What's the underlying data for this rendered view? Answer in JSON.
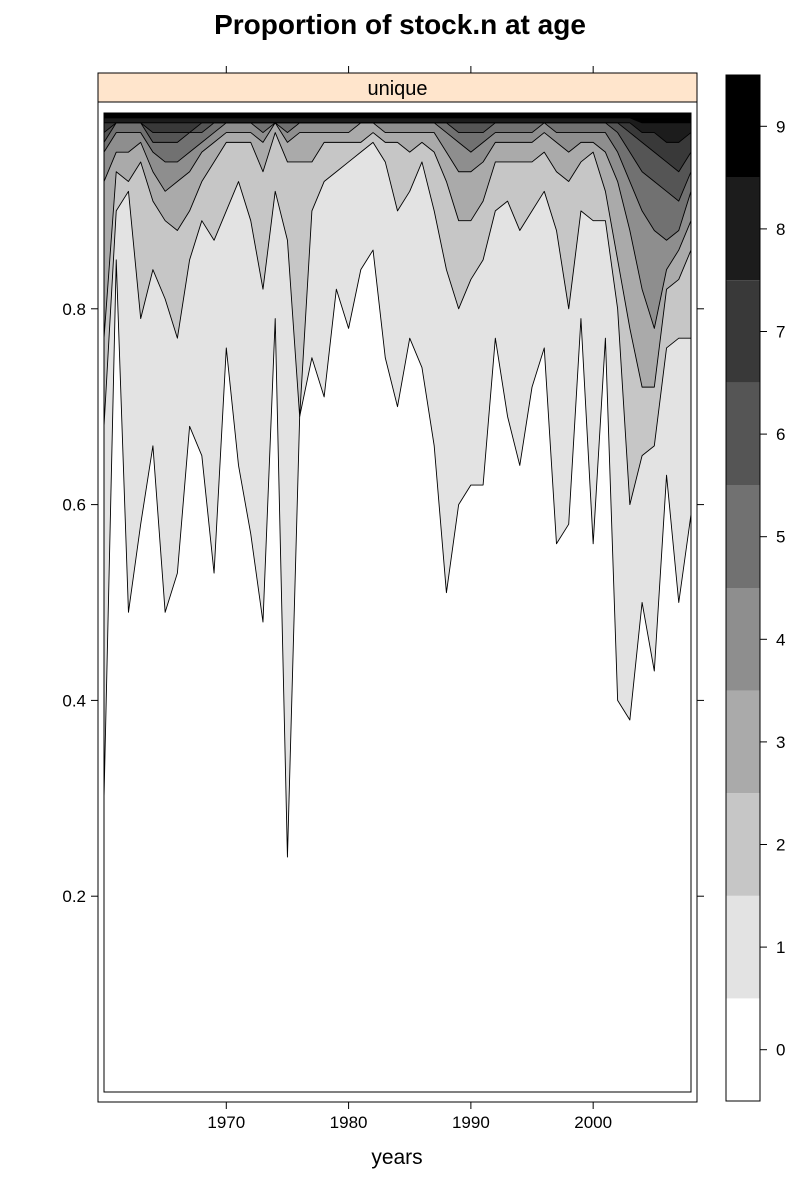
{
  "chart_data": {
    "type": "area",
    "title": "Proportion of stock.n at age",
    "xlabel": "years",
    "ylabel": "",
    "panel_strip": "unique",
    "xlim": [
      1960,
      2008
    ],
    "ylim": [
      0,
      1
    ],
    "x_ticks": [
      1970,
      1980,
      1990,
      2000
    ],
    "x_tick_labels": [
      "1970",
      "1980",
      "1990",
      "2000"
    ],
    "y_ticks": [
      0.2,
      0.4,
      0.6,
      0.8
    ],
    "y_tick_labels": [
      "0.2",
      "0.4",
      "0.6",
      "0.8"
    ],
    "colorkey": {
      "labels": [
        "0",
        "1",
        "2",
        "3",
        "4",
        "5",
        "6",
        "7",
        "8",
        "9"
      ],
      "colors": [
        "#ffffff",
        "#e3e3e3",
        "#c6c6c6",
        "#aaaaaa",
        "#8e8e8e",
        "#717171",
        "#555555",
        "#393939",
        "#1c1c1c",
        "#000000"
      ]
    },
    "strip_color": "#ffe5cc",
    "x": [
      1960,
      1961,
      1962,
      1963,
      1964,
      1965,
      1966,
      1967,
      1968,
      1969,
      1970,
      1971,
      1972,
      1973,
      1974,
      1975,
      1976,
      1977,
      1978,
      1979,
      1980,
      1981,
      1982,
      1983,
      1984,
      1985,
      1986,
      1987,
      1988,
      1989,
      1990,
      1991,
      1992,
      1993,
      1994,
      1995,
      1996,
      1997,
      1998,
      1999,
      2000,
      2001,
      2002,
      2003,
      2004,
      2005,
      2006,
      2007,
      2008
    ],
    "cumulative_boundaries": [
      {
        "name": "age 0",
        "values": [
          0.3,
          0.85,
          0.49,
          0.58,
          0.66,
          0.49,
          0.53,
          0.68,
          0.65,
          0.53,
          0.76,
          0.64,
          0.57,
          0.48,
          0.79,
          0.24,
          0.69,
          0.75,
          0.71,
          0.82,
          0.78,
          0.84,
          0.86,
          0.75,
          0.7,
          0.77,
          0.74,
          0.66,
          0.51,
          0.6,
          0.62,
          0.62,
          0.77,
          0.69,
          0.64,
          0.72,
          0.76,
          0.56,
          0.58,
          0.79,
          0.56,
          0.77,
          0.4,
          0.38,
          0.5,
          0.43,
          0.63,
          0.5,
          0.59
        ]
      },
      {
        "name": "age 1",
        "values": [
          0.68,
          0.9,
          0.92,
          0.79,
          0.84,
          0.81,
          0.77,
          0.85,
          0.89,
          0.87,
          0.9,
          0.93,
          0.89,
          0.82,
          0.92,
          0.87,
          0.69,
          0.9,
          0.93,
          0.94,
          0.95,
          0.96,
          0.97,
          0.95,
          0.9,
          0.92,
          0.95,
          0.9,
          0.84,
          0.8,
          0.83,
          0.85,
          0.9,
          0.91,
          0.88,
          0.9,
          0.92,
          0.88,
          0.8,
          0.9,
          0.89,
          0.89,
          0.8,
          0.6,
          0.65,
          0.66,
          0.76,
          0.77,
          0.77
        ]
      },
      {
        "name": "age 2",
        "values": [
          0.77,
          0.94,
          0.93,
          0.95,
          0.91,
          0.89,
          0.88,
          0.9,
          0.93,
          0.95,
          0.97,
          0.97,
          0.97,
          0.94,
          0.98,
          0.95,
          0.95,
          0.95,
          0.97,
          0.97,
          0.97,
          0.97,
          0.98,
          0.97,
          0.97,
          0.96,
          0.97,
          0.96,
          0.93,
          0.89,
          0.89,
          0.91,
          0.95,
          0.95,
          0.95,
          0.95,
          0.96,
          0.94,
          0.93,
          0.95,
          0.96,
          0.92,
          0.85,
          0.78,
          0.72,
          0.72,
          0.82,
          0.83,
          0.86
        ]
      },
      {
        "name": "age 3",
        "values": [
          0.93,
          0.96,
          0.96,
          0.97,
          0.94,
          0.92,
          0.93,
          0.94,
          0.96,
          0.97,
          0.98,
          0.98,
          0.98,
          0.97,
          0.99,
          0.97,
          0.98,
          0.98,
          0.98,
          0.98,
          0.98,
          0.99,
          0.99,
          0.98,
          0.98,
          0.98,
          0.98,
          0.98,
          0.96,
          0.94,
          0.94,
          0.95,
          0.97,
          0.97,
          0.97,
          0.97,
          0.98,
          0.97,
          0.96,
          0.97,
          0.97,
          0.96,
          0.93,
          0.88,
          0.82,
          0.78,
          0.84,
          0.86,
          0.89
        ]
      },
      {
        "name": "age 4",
        "values": [
          0.96,
          0.98,
          0.98,
          0.98,
          0.96,
          0.95,
          0.95,
          0.96,
          0.97,
          0.98,
          0.99,
          0.99,
          0.99,
          0.98,
          0.99,
          0.98,
          0.99,
          0.99,
          0.99,
          0.99,
          0.99,
          0.99,
          0.99,
          0.99,
          0.99,
          0.99,
          0.99,
          0.99,
          0.98,
          0.97,
          0.96,
          0.97,
          0.98,
          0.98,
          0.98,
          0.98,
          0.99,
          0.98,
          0.98,
          0.98,
          0.98,
          0.98,
          0.96,
          0.93,
          0.9,
          0.88,
          0.87,
          0.88,
          0.92
        ]
      },
      {
        "name": "age 5",
        "values": [
          0.97,
          0.99,
          0.99,
          0.99,
          0.97,
          0.97,
          0.97,
          0.98,
          0.98,
          0.99,
          0.99,
          0.99,
          0.99,
          0.99,
          0.99,
          0.99,
          0.99,
          0.99,
          0.99,
          0.99,
          0.99,
          0.99,
          0.99,
          0.99,
          0.99,
          0.99,
          0.99,
          0.99,
          0.99,
          0.98,
          0.98,
          0.98,
          0.99,
          0.99,
          0.99,
          0.99,
          0.99,
          0.99,
          0.99,
          0.99,
          0.99,
          0.99,
          0.98,
          0.96,
          0.94,
          0.93,
          0.92,
          0.91,
          0.94
        ]
      },
      {
        "name": "age 6",
        "values": [
          0.98,
          0.99,
          0.99,
          0.99,
          0.98,
          0.98,
          0.98,
          0.98,
          0.99,
          0.99,
          0.99,
          0.99,
          0.99,
          0.99,
          0.99,
          0.99,
          0.99,
          0.99,
          0.99,
          0.99,
          0.99,
          0.99,
          0.99,
          0.99,
          0.99,
          0.99,
          0.99,
          0.99,
          0.99,
          0.99,
          0.99,
          0.99,
          0.99,
          0.99,
          0.99,
          0.99,
          0.99,
          0.99,
          0.99,
          0.99,
          0.99,
          0.99,
          0.99,
          0.98,
          0.97,
          0.96,
          0.95,
          0.94,
          0.96
        ]
      },
      {
        "name": "age 7",
        "values": [
          0.99,
          0.99,
          0.99,
          0.99,
          0.99,
          0.99,
          0.99,
          0.99,
          0.99,
          0.99,
          0.99,
          0.99,
          0.99,
          0.99,
          0.99,
          0.99,
          0.99,
          0.99,
          0.99,
          0.99,
          0.99,
          0.99,
          0.99,
          0.99,
          0.99,
          0.99,
          0.99,
          0.99,
          0.99,
          0.99,
          0.99,
          0.99,
          0.99,
          0.99,
          0.99,
          0.99,
          0.99,
          0.99,
          0.99,
          0.99,
          0.99,
          0.99,
          0.99,
          0.99,
          0.98,
          0.98,
          0.97,
          0.97,
          0.98
        ]
      },
      {
        "name": "age 8",
        "values": [
          0.995,
          0.995,
          0.995,
          0.995,
          0.995,
          0.995,
          0.995,
          0.995,
          0.995,
          0.995,
          0.995,
          0.995,
          0.995,
          0.995,
          0.995,
          0.995,
          0.995,
          0.995,
          0.995,
          0.995,
          0.995,
          0.995,
          0.995,
          0.995,
          0.995,
          0.995,
          0.995,
          0.995,
          0.995,
          0.995,
          0.995,
          0.995,
          0.995,
          0.995,
          0.995,
          0.995,
          0.995,
          0.995,
          0.995,
          0.995,
          0.995,
          0.995,
          0.995,
          0.995,
          0.99,
          0.99,
          0.99,
          0.99,
          0.99
        ]
      }
    ]
  }
}
